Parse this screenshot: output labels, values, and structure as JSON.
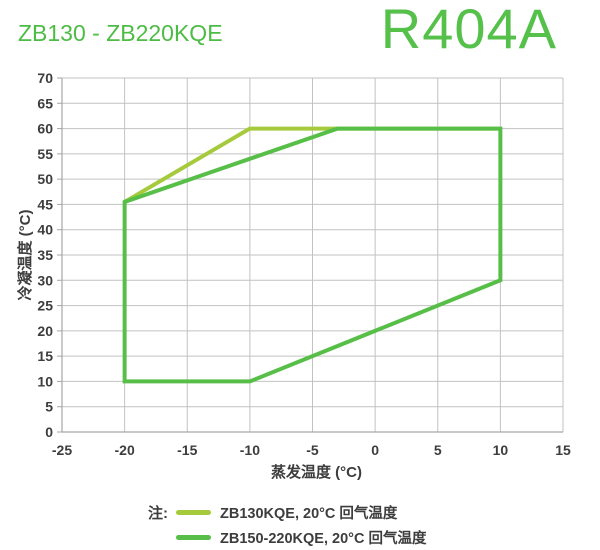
{
  "header": {
    "title": "ZB130 - ZB220KQE",
    "refrigerant": "R404A"
  },
  "chart_data": {
    "type": "line",
    "title": "",
    "xlabel": "蒸发温度 (°C)",
    "ylabel": "冷凝温度 (°C)",
    "xlim": [
      -25,
      15
    ],
    "ylim": [
      0,
      70
    ],
    "xticks": [
      -25,
      -20,
      -15,
      -10,
      -5,
      0,
      5,
      10,
      15
    ],
    "yticks": [
      0,
      5,
      10,
      15,
      20,
      25,
      30,
      35,
      40,
      45,
      50,
      55,
      60,
      65,
      70
    ],
    "grid": true,
    "legend_position": "bottom-left",
    "series": [
      {
        "name": "ZB130KQE, 20°C 回气温度",
        "color": "#a5ca3c",
        "closed": false,
        "points": [
          [
            -20,
            45.5
          ],
          [
            -10,
            60
          ],
          [
            10,
            60
          ]
        ]
      },
      {
        "name": "ZB150-220KQE, 20°C 回气温度",
        "color": "#57bf48",
        "closed": true,
        "points": [
          [
            -20,
            45.5
          ],
          [
            -3,
            60
          ],
          [
            10,
            60
          ],
          [
            10,
            30
          ],
          [
            -10,
            10
          ],
          [
            -20,
            10
          ]
        ]
      }
    ]
  },
  "legend": {
    "prefix": "注:",
    "items": [
      {
        "label": "ZB130KQE, 20°C 回气温度",
        "color": "#a5ca3c"
      },
      {
        "label": "ZB150-220KQE, 20°C 回气温度",
        "color": "#57bf48"
      }
    ]
  },
  "colors": {
    "title": "#4dbc45",
    "refrigerant": "#55c14b",
    "grid": "#c2c2c2",
    "axis": "#a6a6a6",
    "text": "#3d3d3d"
  }
}
